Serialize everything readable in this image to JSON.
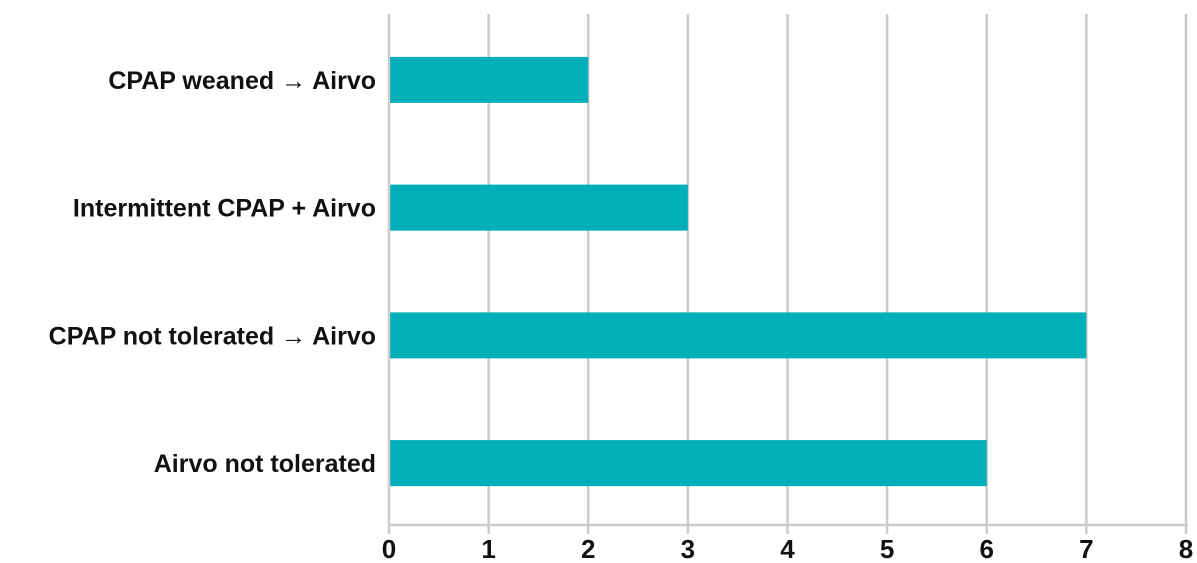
{
  "chart_data": {
    "type": "bar",
    "orientation": "horizontal",
    "title": "",
    "xlabel": "",
    "ylabel": "",
    "categories": [
      "CPAP weaned → Airvo",
      "Intermittent CPAP + Airvo",
      "CPAP not tolerated → Airvo",
      "Airvo not tolerated"
    ],
    "values": [
      2,
      3,
      7,
      6
    ],
    "xlim": [
      0,
      8
    ],
    "x_ticks": [
      "0",
      "1",
      "2",
      "3",
      "4",
      "5",
      "6",
      "7",
      "8"
    ],
    "grid": true,
    "bar_color": "#00AFB8",
    "grid_color": "#CCCCCC"
  }
}
